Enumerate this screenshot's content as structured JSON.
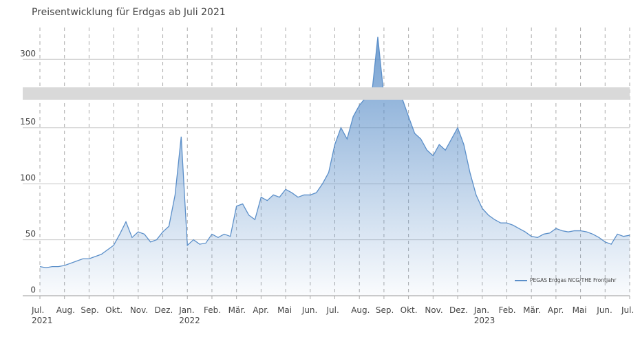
{
  "chart_data": {
    "type": "area",
    "title": "Preisentwicklung für Erdgas ab Juli 2021",
    "categories": [
      "Jul.\n2021",
      null,
      null,
      null,
      "Aug.",
      null,
      null,
      null,
      "Sep.",
      null,
      null,
      null,
      "Okt.",
      null,
      null,
      null,
      "Nov.",
      null,
      null,
      null,
      "Dez.",
      null,
      null,
      null,
      "Jan.\n2022",
      null,
      null,
      null,
      "Feb.",
      null,
      null,
      null,
      "Mär.",
      null,
      null,
      null,
      "Apr.",
      null,
      null,
      null,
      "Mai",
      null,
      null,
      null,
      "Jun.",
      null,
      null,
      null,
      "Jul.",
      null,
      null,
      null,
      "Aug.",
      null,
      null,
      null,
      "Sep.",
      null,
      null,
      null,
      "Okt.",
      null,
      null,
      null,
      "Nov.",
      null,
      null,
      null,
      "Dez.",
      null,
      null,
      null,
      "Jan.\n2023",
      null,
      null,
      null,
      "Feb.",
      null,
      null,
      null,
      "Mär.",
      null,
      null,
      null,
      "Apr.",
      null,
      null,
      null,
      "Mai",
      null,
      null,
      null,
      "Jun.",
      null,
      null,
      null,
      "Jul."
    ],
    "series": [
      {
        "name": "PEGAS Erdgas NCG/THE Frontjahr",
        "color": "#5b8fc9",
        "values": [
          26,
          25,
          26,
          26,
          27,
          29,
          31,
          33,
          33,
          35,
          37,
          41,
          45,
          55,
          66,
          52,
          57,
          55,
          48,
          50,
          57,
          62,
          90,
          142,
          45,
          50,
          46,
          47,
          55,
          52,
          55,
          53,
          80,
          82,
          72,
          68,
          88,
          85,
          90,
          88,
          95,
          92,
          88,
          90,
          90,
          92,
          100,
          110,
          135,
          150,
          140,
          160,
          170,
          190,
          210,
          320,
          200,
          200,
          190,
          180,
          160,
          145,
          140,
          130,
          125,
          135,
          130,
          140,
          150,
          135,
          110,
          90,
          78,
          72,
          68,
          65,
          65,
          63,
          60,
          57,
          53,
          52,
          55,
          56,
          60,
          58,
          57,
          58,
          58,
          57,
          55,
          52,
          48,
          46,
          55,
          53,
          54
        ]
      }
    ],
    "ylim": [
      0,
      340
    ],
    "yticks": [
      0,
      50,
      100,
      150,
      300
    ],
    "axis_break": [
      175,
      275
    ],
    "grid": true,
    "legend": "lower right"
  }
}
